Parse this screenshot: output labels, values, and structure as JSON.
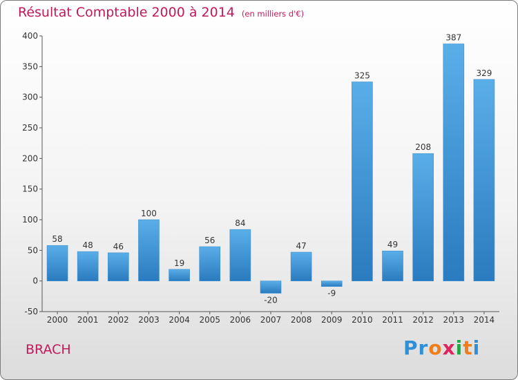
{
  "header": {
    "title": "Résultat Comptable 2000 à 2014",
    "subtitle": "(en milliers d'€)"
  },
  "footer": {
    "commune": "BRACH",
    "logo_text": "Proxiti"
  },
  "colors": {
    "title": "#c2185b",
    "bar_top": "#5aaee8",
    "bar_bottom": "#2a7bbf",
    "logo_letters": [
      "#2f8fd8",
      "#2f8fd8",
      "#f07c1a",
      "#e0245e",
      "#29a34a",
      "#f07c1a",
      "#2f8fd8"
    ]
  },
  "chart_data": {
    "type": "bar",
    "categories": [
      "2000",
      "2001",
      "2002",
      "2003",
      "2004",
      "2005",
      "2006",
      "2007",
      "2008",
      "2009",
      "2010",
      "2011",
      "2012",
      "2013",
      "2014"
    ],
    "values": [
      58,
      48,
      46,
      100,
      19,
      56,
      84,
      -20,
      47,
      -9,
      325,
      49,
      208,
      387,
      329
    ],
    "data_labels": [
      "58",
      "48",
      "46",
      "100",
      "19",
      "56",
      "84",
      "-20",
      "47",
      "-9",
      "325",
      "49",
      "208",
      "387",
      "329"
    ],
    "yticks": [
      400,
      350,
      300,
      250,
      200,
      150,
      100,
      50,
      0,
      -50
    ],
    "ylim": [
      -50,
      400
    ],
    "grid": false,
    "legend": "none"
  }
}
